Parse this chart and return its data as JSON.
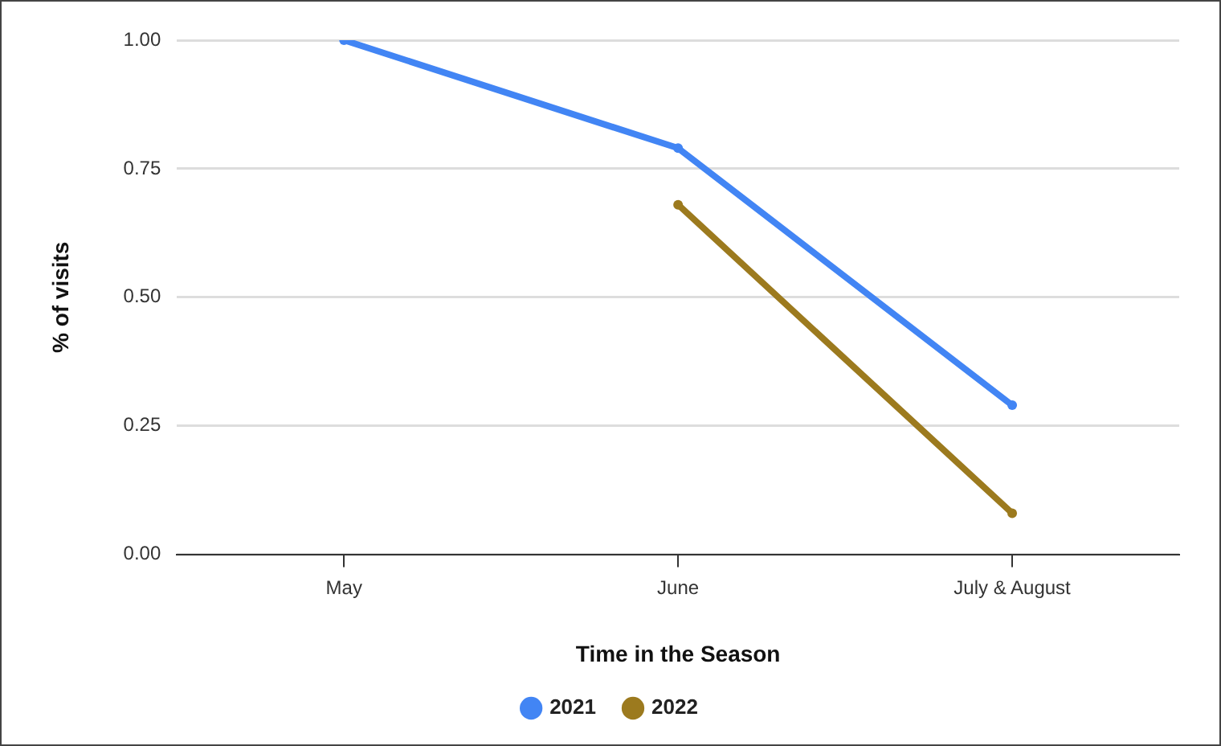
{
  "chart_data": {
    "type": "line",
    "xlabel": "Time in the Season",
    "ylabel": "% of visits",
    "categories": [
      "May",
      "June",
      "July & August"
    ],
    "series": [
      {
        "name": "2021",
        "color": "#4285f4",
        "values": [
          1.0,
          0.79,
          0.29
        ]
      },
      {
        "name": "2022",
        "color": "#9c7a1e",
        "values": [
          null,
          0.68,
          0.08
        ]
      }
    ],
    "ylim": [
      0,
      1
    ],
    "yticks": [
      {
        "value": 0,
        "label": "0.00"
      },
      {
        "value": 0.25,
        "label": "0.25"
      },
      {
        "value": 0.5,
        "label": "0.50"
      },
      {
        "value": 0.75,
        "label": "0.75"
      },
      {
        "value": 1,
        "label": "1.00"
      }
    ],
    "grid": "y",
    "legend": "bottom",
    "marker": "circle",
    "line_style": "solid"
  }
}
